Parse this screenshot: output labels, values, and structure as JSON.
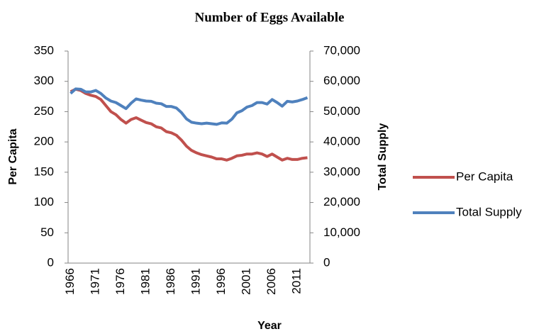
{
  "chart_data": {
    "type": "line",
    "title": "Number of Eggs Available",
    "x_label": "Year",
    "y_label": "Per Capita",
    "y2_label": "Total Supply",
    "categories": [
      "1966",
      null,
      null,
      null,
      null,
      "1971",
      null,
      null,
      null,
      null,
      "1976",
      null,
      null,
      null,
      null,
      "1981",
      null,
      null,
      null,
      null,
      "1986",
      null,
      null,
      null,
      null,
      "1991",
      null,
      null,
      null,
      null,
      "1996",
      null,
      null,
      null,
      null,
      "2001",
      null,
      null,
      null,
      null,
      "2006",
      null,
      null,
      null,
      null,
      "2011",
      null,
      null
    ],
    "series": [
      {
        "name": "Per Capita",
        "color": "#c0504d",
        "axis": "y",
        "values": [
          283,
          287,
          285,
          280,
          277,
          275,
          270,
          260,
          250,
          245,
          237,
          231,
          237,
          240,
          236,
          232,
          230,
          225,
          223,
          217,
          215,
          211,
          203,
          193,
          186,
          182,
          179,
          177,
          175,
          172,
          172,
          170,
          173,
          177,
          178,
          180,
          180,
          182,
          180,
          176,
          180,
          175,
          170,
          173,
          171,
          171,
          173,
          174
        ]
      },
      {
        "name": "Total Supply",
        "color": "#4f81bd",
        "axis": "y2",
        "values": [
          56000,
          57500,
          57400,
          56500,
          56500,
          57000,
          56000,
          54500,
          53500,
          53000,
          52000,
          51000,
          52800,
          54200,
          53800,
          53500,
          53400,
          52800,
          52600,
          51700,
          51700,
          51200,
          49700,
          47600,
          46500,
          46200,
          46000,
          46200,
          46000,
          45800,
          46300,
          46200,
          47500,
          49600,
          50300,
          51500,
          52000,
          53000,
          53000,
          52500,
          54000,
          53000,
          51800,
          53400,
          53200,
          53500,
          54000,
          54600
        ]
      }
    ],
    "ylim": [
      0,
      350
    ],
    "yticks": [
      0,
      50,
      100,
      150,
      200,
      250,
      300,
      350
    ],
    "y2lim": [
      0,
      70000
    ],
    "y2ticks": [
      0,
      {
        "value": 10000,
        "label": "10,000"
      },
      {
        "value": 20000,
        "label": "20,000"
      },
      {
        "value": 30000,
        "label": "30,000"
      },
      {
        "value": 40000,
        "label": "40,000"
      },
      {
        "value": 50000,
        "label": "50,000"
      },
      {
        "value": 60000,
        "label": "60,000"
      },
      {
        "value": 70000,
        "label": "70,000"
      }
    ],
    "legend": "right",
    "grid": false
  }
}
